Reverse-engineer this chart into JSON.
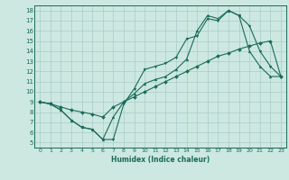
{
  "xlabel": "Humidex (Indice chaleur)",
  "xlim": [
    -0.5,
    23.5
  ],
  "ylim": [
    4.5,
    18.5
  ],
  "yticks": [
    5,
    6,
    7,
    8,
    9,
    10,
    11,
    12,
    13,
    14,
    15,
    16,
    17,
    18
  ],
  "xticks": [
    0,
    1,
    2,
    3,
    4,
    5,
    6,
    7,
    8,
    9,
    10,
    11,
    12,
    13,
    14,
    15,
    16,
    17,
    18,
    19,
    20,
    21,
    22,
    23
  ],
  "background_color": "#cce8e0",
  "grid_color": "#aacccc",
  "line_color": "#1a6b5a",
  "line1_x": [
    0,
    1,
    2,
    3,
    4,
    5,
    6,
    7,
    8,
    9,
    10,
    11,
    12,
    13,
    14,
    15,
    16,
    17,
    18,
    19,
    20,
    21,
    22,
    23
  ],
  "line1_y": [
    9.0,
    8.8,
    8.2,
    7.2,
    6.5,
    6.3,
    5.3,
    5.3,
    8.8,
    10.3,
    12.2,
    12.5,
    12.8,
    13.4,
    15.2,
    15.5,
    17.2,
    17.0,
    18.0,
    17.5,
    16.5,
    14.0,
    12.5,
    11.5
  ],
  "line2_x": [
    0,
    1,
    2,
    3,
    4,
    5,
    6,
    7,
    8,
    9,
    10,
    11,
    12,
    13,
    14,
    15,
    16,
    17,
    18,
    19,
    20,
    21,
    22,
    23
  ],
  "line2_y": [
    9.0,
    8.8,
    8.2,
    7.2,
    6.5,
    6.3,
    5.3,
    7.5,
    9.0,
    9.8,
    10.8,
    11.2,
    11.5,
    12.2,
    13.2,
    16.0,
    17.5,
    17.2,
    18.0,
    17.5,
    14.0,
    12.5,
    11.5,
    11.5
  ],
  "line3_x": [
    0,
    1,
    2,
    3,
    4,
    5,
    6,
    7,
    8,
    9,
    10,
    11,
    12,
    13,
    14,
    15,
    16,
    17,
    18,
    19,
    20,
    21,
    22,
    23
  ],
  "line3_y": [
    9.0,
    8.8,
    8.5,
    8.2,
    8.0,
    7.8,
    7.5,
    8.5,
    9.0,
    9.5,
    10.0,
    10.5,
    11.0,
    11.5,
    12.0,
    12.5,
    13.0,
    13.5,
    13.8,
    14.2,
    14.5,
    14.8,
    15.0,
    11.5
  ]
}
